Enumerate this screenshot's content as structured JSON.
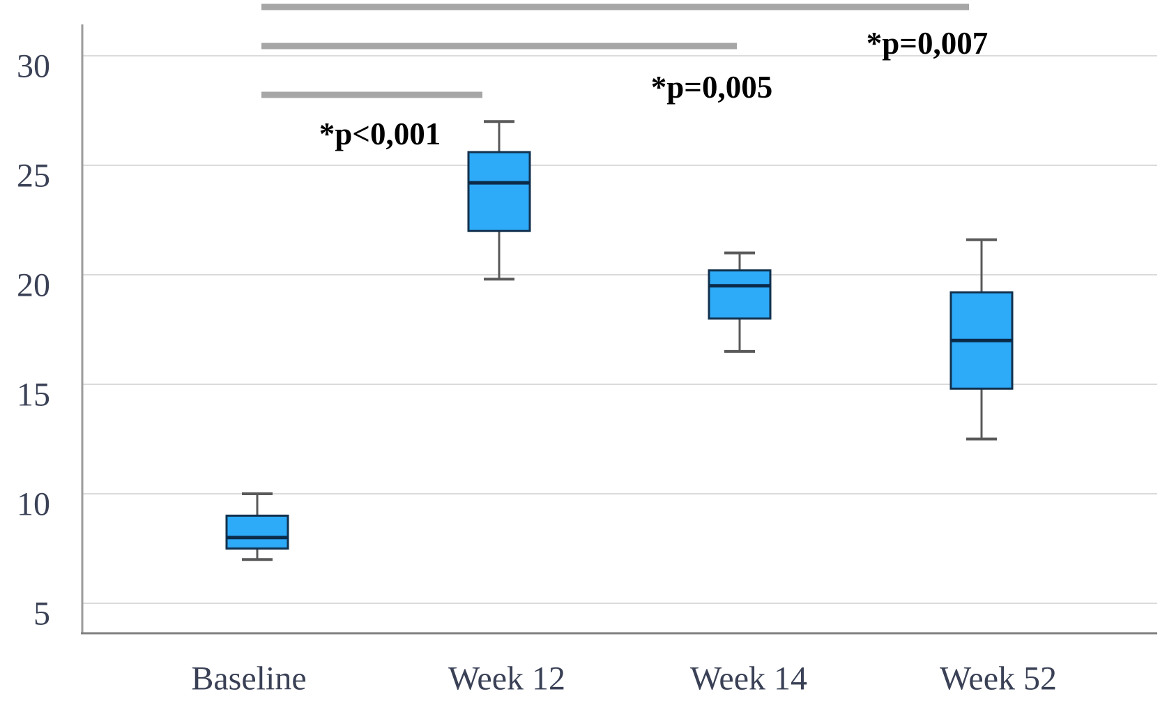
{
  "chart_data": {
    "type": "box",
    "title": "",
    "xlabel": "",
    "ylabel": "",
    "categories": [
      "Baseline",
      "Week 12",
      "Week 14",
      "Week 52"
    ],
    "series": [
      {
        "category": "Baseline",
        "whisker_low": 7.0,
        "q1": 7.5,
        "median": 8.0,
        "q3": 9.0,
        "whisker_high": 10.0
      },
      {
        "category": "Week 12",
        "whisker_low": 19.8,
        "q1": 22.0,
        "median": 24.2,
        "q3": 25.6,
        "whisker_high": 27.0
      },
      {
        "category": "Week 14",
        "whisker_low": 16.5,
        "q1": 18.0,
        "median": 19.5,
        "q3": 20.2,
        "whisker_high": 21.0
      },
      {
        "category": "Week 52",
        "whisker_low": 12.5,
        "q1": 14.8,
        "median": 17.0,
        "q3": 19.2,
        "whisker_high": 21.6
      }
    ],
    "y_axis": {
      "ticks": [
        30,
        25,
        20,
        15,
        10,
        5
      ],
      "visible_range": [
        3.6,
        31.4
      ]
    },
    "significance_brackets": [
      {
        "from": "Baseline",
        "to": "Week 52",
        "label": "*p=0,007"
      },
      {
        "from": "Baseline",
        "to": "Week 14",
        "label": "*p=0,005"
      },
      {
        "from": "Baseline",
        "to": "Week 12",
        "label": "*p<0,001"
      }
    ],
    "grid": true,
    "legend": null,
    "colors": {
      "box_fill": "#2DAAF8",
      "box_border": "#12314E",
      "median": "#0B2B49",
      "whisker": "#595959",
      "bracket": "#A6A6A6",
      "gridline": "#DBDBDB",
      "axis_left": "#9B9B9B",
      "axis_bottom": "#7F7F7F",
      "tick_label": "#3A4156",
      "p_label": "#000000"
    }
  }
}
